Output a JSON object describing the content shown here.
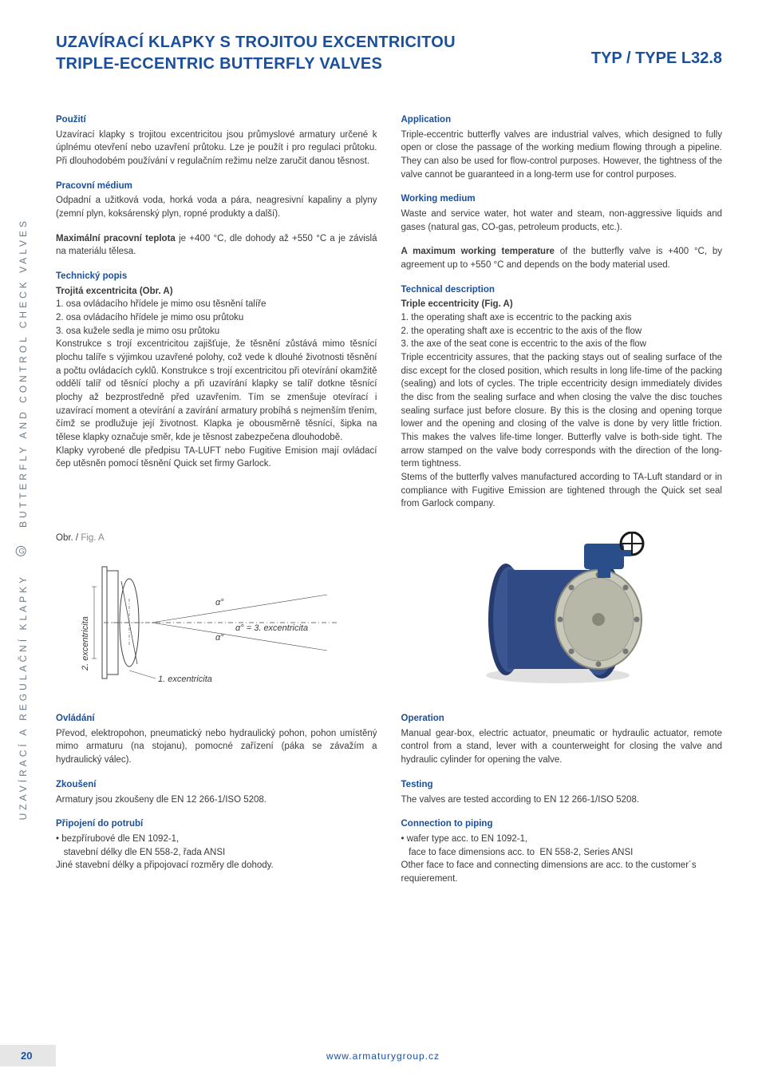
{
  "side_text_left": "UZAVÍRACÍ A REGULAČNÍ KLAPKY",
  "side_text_right": "BUTTERFLY AND CONTROL CHECK VALVES",
  "header": {
    "title_cz": "UZAVÍRACÍ KLAPKY S TROJITOU EXCENTRICITOU",
    "title_en": "TRIPLE-ECCENTRIC BUTTERFLY VALVES",
    "type": "TYP / TYPE L32.8"
  },
  "left": {
    "pouziti_h": "Použití",
    "pouziti": "Uzavírací klapky s trojitou excentricitou jsou průmyslové armatury určené k úplnému otevření nebo uzavření průtoku. Lze je použít i pro regulaci průtoku. Při dlouhodobém používání v regulačním režimu nelze zaručit danou těsnost.",
    "medium_h": "Pracovní médium",
    "medium": "Odpadní a užitková voda, horká voda a pára, neagresivní kapaliny a plyny (zemní plyn, koksárenský plyn, ropné produkty a další).",
    "teplota_b": "Maximální pracovní teplota",
    "teplota": " je +400 °C, dle dohody až +550 °C a je závislá na materiálu tělesa.",
    "popis_h": "Technický popis",
    "popis_sub": "Trojitá excentricita (Obr. A)",
    "popis_1": "1.  osa ovládacího hřídele je mimo osu těsnění talíře",
    "popis_2": "2.  osa ovládacího hřídele je mimo osu průtoku",
    "popis_3": "3.  osa kužele sedla je mimo osu průtoku",
    "popis_body": "Konstrukce s trojí excentricitou zajišťuje, že těsnění zůstává mimo těsnící plochu talíře s výjimkou uzavřené polohy, což vede k dlouhé životnosti těsnění a počtu ovládacích cyklů. Konstrukce s trojí excentricitou při otevírání okamžitě oddělí talíř od těsnící plochy a při uzavírání klapky se talíř dotkne těsnící plochy až bezprostředně před uzavřením. Tím se zmenšuje otevírací i uzavírací moment a otevírání a zavírání armatury probíhá s nejmenším třením, čímž se prodlužuje její životnost. Klapka je obousměrně těsnící, šipka na tělese klapky označuje směr, kde je těsnost zabezpečena dlouhodobě.",
    "popis_taluft": "Klapky vyrobené dle předpisu TA-LUFT nebo Fugitive Emision mají ovládací čep utěsněn pomocí těsnění Quick set firmy Garlock.",
    "ovladani_h": "Ovládání",
    "ovladani": "Převod, elektropohon, pneumatický nebo hydraulický pohon, pohon umístěný mimo armaturu (na stojanu), pomocné zařízení (páka se závažím a hydraulický válec).",
    "zkouseni_h": "Zkoušení",
    "zkouseni": "Armatury jsou zkoušeny dle EN 12 266-1/ISO 5208.",
    "pripojeni_h": "Připojení do potrubí",
    "pripojeni_1": "• bezpřírubové dle EN 1092-1,",
    "pripojeni_2": "   stavební délky dle EN 558-2, řada ANSI",
    "pripojeni_3": "Jiné stavební délky a připojovací rozměry dle dohody."
  },
  "right": {
    "application_h": "Application",
    "application": "Triple-eccentric butterfly valves are industrial valves, which designed to fully open or close the passage of the working medium flowing through a pipeline. They can also be used for flow-control purposes. However, the tightness of the valve cannot be guaranteed in a long-term use for control purposes.",
    "medium_h": "Working medium",
    "medium": "Waste and service water, hot water and steam, non-aggressive liquids and gases (natural gas, CO-gas, petroleum products, etc.).",
    "temp_b": "A maximum working temperature",
    "temp": " of the butterfly valve is +400 °C, by agreement up to +550 °C and depends on  the body material used.",
    "desc_h": "Technical description",
    "desc_sub": "Triple eccentricity (Fig. A)",
    "desc_1": "1.  the operating shaft axe is eccentric to the packing axis",
    "desc_2": "2.  the operating shaft axe is eccentric to the axis of the flow",
    "desc_3": "3.  the axe of the seat cone is eccentric to the axis of the flow",
    "desc_body": "Triple eccentricity assures, that the packing stays out of sealing surface of the disc except for the  closed position, which results in long life-time of the packing (sealing) and lots of cycles. The triple eccentricity design immediately divides the disc from the sealing surface and when closing the valve the disc touches sealing surface just before closure. By this is the closing and opening torque lower and the opening and closing of the valve is done by very little friction. This makes the valves life-time longer. Butterfly valve is both-side tight. The arrow stamped on the valve body corresponds with the direction of the long-term tightness.",
    "desc_taluft": "Stems of the butterfly valves manufactured according to TA-Luft standard or in compliance with Fugitive Emission are tightened through the Quick set seal from Garlock company.",
    "operation_h": "Operation",
    "operation": "Manual gear-box, electric actuator, pneumatic or hydraulic actuator, remote control from a stand, lever with a counterweight for closing the valve and hydraulic cylinder for opening the valve.",
    "testing_h": "Testing",
    "testing": "The valves are tested according to EN 12 266-1/ISO 5208.",
    "connection_h": "Connection to piping",
    "connection_1": "• wafer type acc. to EN 1092-1,",
    "connection_2": "   face to face dimensions acc. to  EN 558-2, Series ANSI",
    "connection_3": "Other face to face and connecting dimensions are acc. to the customer´s requierement."
  },
  "figure": {
    "label": "Obr. /",
    "label_grey": " Fig.  A",
    "exc1": "1. excentricita",
    "exc2": "2. excentricita",
    "exc3": "α° = 3. excentricita",
    "alpha1": "α°",
    "alpha2": "α°",
    "colors": {
      "line": "#444444",
      "dash": "#444444",
      "text": "#3a3a3a"
    }
  },
  "valve_colors": {
    "flange": "#263b6b",
    "disc": "#b8b8a8",
    "disc_edge": "#8a8a7a",
    "actuator": "#2a4e8a",
    "wheel": "#1b1b1b"
  },
  "footer": {
    "page": "20",
    "url": "www.armaturygroup.cz"
  }
}
